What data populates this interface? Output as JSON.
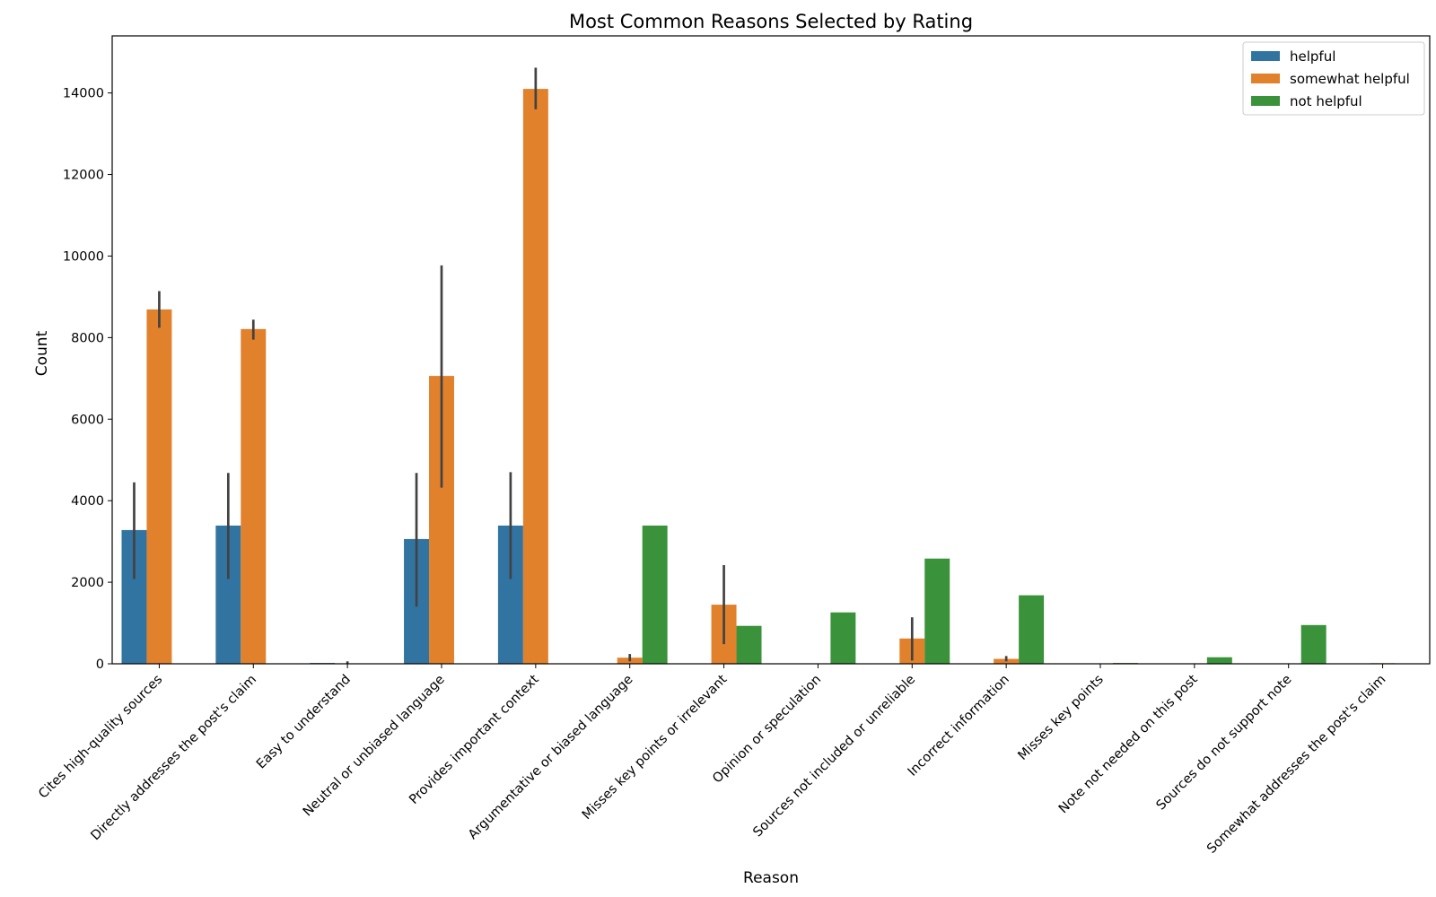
{
  "chart_data": {
    "type": "bar",
    "title": "Most Common Reasons Selected by Rating",
    "xlabel": "Reason",
    "ylabel": "Count",
    "ylim": [
      0,
      15400
    ],
    "yticks": [
      0,
      2000,
      4000,
      6000,
      8000,
      10000,
      12000,
      14000
    ],
    "legend_position": "top-right",
    "categories": [
      "Cites high-quality sources",
      "Directly addresses the post's claim",
      "Easy to understand",
      "Neutral or unbiased language",
      "Provides important context",
      "Argumentative or biased language",
      "Misses key points or irrelevant",
      "Opinion or speculation",
      "Sources not included or unreliable",
      "Incorrect information",
      "Misses key points",
      "Note not needed on this post",
      "Sources do not support note",
      "Somewhat addresses the post's claim"
    ],
    "series": [
      {
        "name": "helpful",
        "color": "#3274a1",
        "values": [
          3280,
          3390,
          20,
          3060,
          3390,
          null,
          null,
          null,
          null,
          null,
          null,
          null,
          null,
          null
        ],
        "error_low": [
          2080,
          2080,
          null,
          1400,
          2080,
          null,
          null,
          null,
          null,
          null,
          null,
          null,
          null,
          null
        ],
        "error_high": [
          4450,
          4680,
          null,
          4680,
          4700,
          null,
          null,
          null,
          null,
          null,
          null,
          null,
          null,
          null
        ]
      },
      {
        "name": "somewhat helpful",
        "color": "#e1812c",
        "values": [
          8690,
          8210,
          10,
          7060,
          14100,
          150,
          1450,
          null,
          620,
          120,
          null,
          null,
          null,
          15
        ],
        "error_low": [
          8240,
          7950,
          null,
          4320,
          13600,
          60,
          480,
          null,
          80,
          60,
          null,
          null,
          null,
          null
        ],
        "error_high": [
          9140,
          8440,
          60,
          9770,
          14620,
          240,
          2420,
          null,
          1140,
          190,
          null,
          null,
          null,
          null
        ]
      },
      {
        "name": "not helpful",
        "color": "#3a923a",
        "values": [
          null,
          null,
          null,
          null,
          null,
          3390,
          930,
          1260,
          2580,
          1680,
          20,
          160,
          950,
          null
        ],
        "error_low": [
          null,
          null,
          null,
          null,
          null,
          null,
          null,
          null,
          null,
          null,
          null,
          null,
          null,
          null
        ],
        "error_high": [
          null,
          null,
          null,
          null,
          null,
          null,
          null,
          null,
          null,
          null,
          null,
          null,
          null,
          null
        ]
      }
    ]
  }
}
